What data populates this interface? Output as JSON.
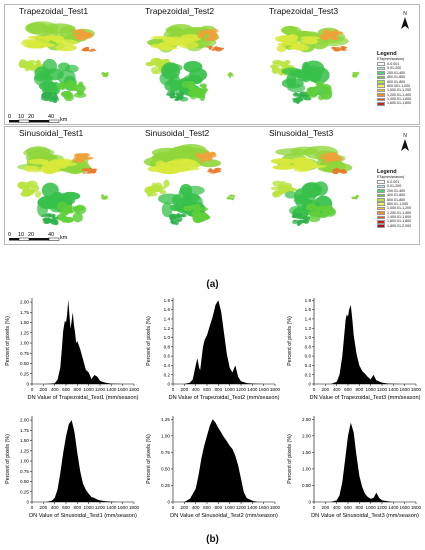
{
  "panel_a": {
    "rows": [
      {
        "titles": [
          "Trapezoidal_Test1",
          "Trapezoidal_Test2",
          "Trapezoidal_Test3"
        ],
        "legend_title": "Legend",
        "legend_unit": "ETa(mm/season)",
        "legend_items": [
          "0-0.001",
          "0.01-200",
          "200.01-400",
          "400.01-600",
          "600.01-800",
          "800.001-1,000",
          "1,000.01-1,200",
          "1,200.01-1,400",
          "1,400.01-1,600",
          "1,600.01-1,800"
        ]
      },
      {
        "titles": [
          "Sinusoidal_Test1",
          "Sinusoidal_Test2",
          "Sinusoidal_Test3"
        ],
        "legend_title": "Legend",
        "legend_unit": "ETa(mm/season)",
        "legend_items": [
          "0-0.001",
          "0.01-200",
          "200.01-400",
          "400.01-600",
          "600.01-800",
          "800.01-1,000",
          "1,000.01-1,200",
          "1,200.01-1,400",
          "1,400.01-1,600",
          "1,600.01-1,800",
          "1,800.01-2,000"
        ]
      }
    ],
    "legend_colors": [
      "#ffffff",
      "#b5ecec",
      "#4fd17a",
      "#6fcf3a",
      "#b6e83a",
      "#f4f25a",
      "#f7c13b",
      "#f08c2b",
      "#e05a20",
      "#c8201b",
      "#a8101a"
    ],
    "north_label": "N",
    "scale_labels": [
      "0",
      "10",
      "20",
      "40",
      "km"
    ],
    "caption": "(a)"
  },
  "chart_data": [
    {
      "type": "area",
      "xlabel": "DN Value of Trapezoidal_Test1 (mm/season)",
      "ylabel": "Percent of pixels (%)",
      "xlim": [
        0,
        1800
      ],
      "ylim": [
        0,
        2.1
      ],
      "yticks": [
        0,
        0.25,
        0.5,
        0.75,
        1.0,
        1.25,
        1.5,
        1.75,
        2.0
      ],
      "yticklabels": [
        "0",
        "0.25",
        "0.50",
        "0.75",
        "1.00",
        "1.25",
        "1.50",
        "1.75",
        "2.00"
      ],
      "xticks": [
        0,
        200,
        400,
        600,
        800,
        1000,
        1200,
        1400,
        1600,
        1800
      ],
      "x": [
        250,
        400,
        450,
        500,
        530,
        550,
        580,
        600,
        620,
        640,
        660,
        680,
        700,
        720,
        740,
        760,
        780,
        800,
        850,
        900,
        950,
        1000,
        1050,
        1100,
        1150,
        1200,
        1250,
        1300,
        1400,
        1500,
        1600
      ],
      "y": [
        0,
        0.02,
        0.1,
        0.4,
        0.9,
        1.3,
        1.55,
        1.5,
        1.7,
        2.05,
        1.7,
        1.35,
        1.55,
        1.75,
        1.45,
        1.25,
        1.0,
        1.05,
        0.85,
        0.6,
        0.35,
        0.28,
        0.12,
        0.22,
        0.18,
        0.08,
        0.05,
        0.03,
        0.01,
        0.005,
        0
      ]
    },
    {
      "type": "area",
      "xlabel": "DN Value of Trapezoidal_Test2 (mm/season)",
      "ylabel": "Percent of pixels (%)",
      "xlim": [
        0,
        1800
      ],
      "ylim": [
        0,
        1.85
      ],
      "yticks": [
        0,
        0.2,
        0.4,
        0.6,
        0.8,
        1.0,
        1.2,
        1.4,
        1.6,
        1.8
      ],
      "yticklabels": [
        "0",
        "0.2",
        "0.4",
        "0.6",
        "0.8",
        "1.0",
        "1.2",
        "1.4",
        "1.6",
        "1.8"
      ],
      "xticks": [
        0,
        200,
        400,
        600,
        800,
        1000,
        1200,
        1400,
        1600,
        1800
      ],
      "x": [
        200,
        300,
        350,
        400,
        430,
        460,
        480,
        500,
        530,
        560,
        600,
        650,
        700,
        750,
        800,
        850,
        900,
        950,
        1000,
        1050,
        1100,
        1150,
        1200,
        1300,
        1400,
        1600
      ],
      "y": [
        0,
        0.03,
        0.1,
        0.4,
        0.55,
        0.35,
        0.3,
        0.5,
        0.8,
        0.95,
        1.05,
        1.25,
        1.45,
        1.7,
        1.8,
        1.55,
        1.1,
        0.65,
        0.35,
        0.25,
        0.4,
        0.15,
        0.06,
        0.02,
        0.01,
        0
      ]
    },
    {
      "type": "area",
      "xlabel": "DN Value of Trapezoidal_Test3 (mm/season)",
      "ylabel": "Percent of pixels (%)",
      "xlim": [
        0,
        1800
      ],
      "ylim": [
        0,
        1.85
      ],
      "yticks": [
        0,
        0.2,
        0.4,
        0.6,
        0.8,
        1.0,
        1.2,
        1.4,
        1.6,
        1.8
      ],
      "yticklabels": [
        "0",
        "0.2",
        "0.4",
        "0.6",
        "0.8",
        "1.0",
        "1.2",
        "1.4",
        "1.6",
        "1.8"
      ],
      "xticks": [
        0,
        200,
        400,
        600,
        800,
        1000,
        1200,
        1400,
        1600,
        1800
      ],
      "x": [
        300,
        400,
        450,
        500,
        530,
        560,
        580,
        600,
        620,
        650,
        680,
        700,
        750,
        800,
        850,
        900,
        950,
        1000,
        1050,
        1100,
        1200,
        1300,
        1500
      ],
      "y": [
        0,
        0.05,
        0.2,
        0.6,
        1.0,
        1.4,
        1.5,
        1.45,
        1.6,
        1.7,
        1.35,
        1.05,
        0.65,
        0.4,
        0.28,
        0.22,
        0.15,
        0.1,
        0.2,
        0.08,
        0.03,
        0.01,
        0
      ]
    },
    {
      "type": "area",
      "xlabel": "DN Value of Sinusoidal_Test1 (mm/season)",
      "ylabel": "Percent of pixels (%)",
      "xlim": [
        0,
        1800
      ],
      "ylim": [
        0,
        2.1
      ],
      "yticks": [
        0,
        0.25,
        0.5,
        0.75,
        1.0,
        1.25,
        1.5,
        1.75,
        2.0
      ],
      "yticklabels": [
        "0",
        "0.25",
        "0.50",
        "0.75",
        "1.00",
        "1.25",
        "1.50",
        "1.75",
        "2.00"
      ],
      "xticks": [
        0,
        200,
        400,
        600,
        800,
        1000,
        1200,
        1400,
        1600,
        1800
      ],
      "x": [
        250,
        350,
        400,
        450,
        500,
        550,
        600,
        650,
        700,
        750,
        800,
        850,
        900,
        950,
        1000,
        1050,
        1100,
        1150,
        1200,
        1300,
        1400,
        1500
      ],
      "y": [
        0,
        0.03,
        0.1,
        0.3,
        0.7,
        1.2,
        1.6,
        1.9,
        2.0,
        1.7,
        1.2,
        0.75,
        0.45,
        0.3,
        0.2,
        0.12,
        0.1,
        0.06,
        0.04,
        0.02,
        0.01,
        0
      ]
    },
    {
      "type": "area",
      "xlabel": "DN Value of Sinusoidal_Test2 (mm/season)",
      "ylabel": "Percent of pixels (%)",
      "xlim": [
        0,
        1800
      ],
      "ylim": [
        0,
        1.3
      ],
      "yticks": [
        0,
        0.25,
        0.5,
        0.75,
        1.0,
        1.25
      ],
      "yticklabels": [
        "0",
        "0.25",
        "0.50",
        "0.75",
        "1.00",
        "1.25"
      ],
      "xticks": [
        0,
        200,
        400,
        600,
        800,
        1000,
        1200,
        1400,
        1600,
        1800
      ],
      "x": [
        200,
        300,
        400,
        450,
        500,
        550,
        600,
        650,
        700,
        750,
        800,
        850,
        900,
        950,
        1000,
        1050,
        1100,
        1150,
        1200,
        1250,
        1300,
        1400,
        1500
      ],
      "y": [
        0,
        0.05,
        0.2,
        0.4,
        0.65,
        0.85,
        1.0,
        1.15,
        1.25,
        1.2,
        1.12,
        1.05,
        0.98,
        0.92,
        0.85,
        0.8,
        0.7,
        0.55,
        0.35,
        0.15,
        0.06,
        0.02,
        0
      ]
    },
    {
      "type": "area",
      "xlabel": "DN Value of Sinusoidal_Test3 (mm/season)",
      "ylabel": "Percent of pixels (%)",
      "xlim": [
        0,
        1800
      ],
      "ylim": [
        0,
        2.6
      ],
      "yticks": [
        0,
        0.5,
        1.0,
        1.5,
        2.0,
        2.5
      ],
      "yticklabels": [
        "0",
        "0.50",
        "1.00",
        "1.50",
        "2.00",
        "2.50"
      ],
      "xticks": [
        0,
        200,
        400,
        600,
        800,
        1000,
        1200,
        1400,
        1600,
        1800
      ],
      "x": [
        300,
        400,
        450,
        500,
        550,
        600,
        650,
        700,
        750,
        800,
        850,
        900,
        950,
        1000,
        1050,
        1100,
        1150,
        1200,
        1300,
        1400
      ],
      "y": [
        0,
        0.05,
        0.2,
        0.6,
        1.3,
        2.0,
        2.4,
        2.1,
        1.4,
        0.8,
        0.45,
        0.25,
        0.15,
        0.1,
        0.12,
        0.28,
        0.12,
        0.05,
        0.02,
        0
      ]
    }
  ],
  "caption_b": "(b)"
}
